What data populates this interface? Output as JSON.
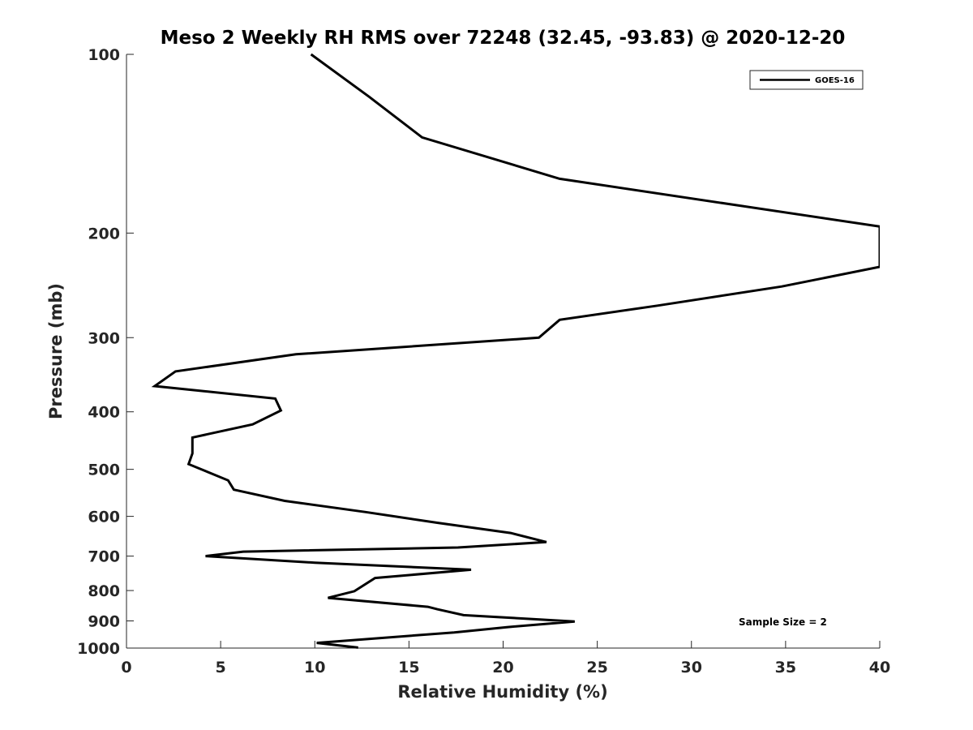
{
  "chart_data": {
    "type": "line",
    "title": "Meso 2 Weekly RH RMS over 72248 (32.45, -93.83) @ 2020-12-20",
    "xlabel": "Relative Humidity (%)",
    "ylabel": "Pressure (mb)",
    "xlim": [
      0,
      40
    ],
    "ylim": [
      100,
      1000
    ],
    "y_scale": "log",
    "y_reversed": true,
    "grid": false,
    "legend_position": "top-right",
    "x_ticks": [
      "0",
      "5",
      "10",
      "15",
      "20",
      "25",
      "30",
      "35",
      "40"
    ],
    "y_ticks": [
      "100",
      "200",
      "300",
      "400",
      "500",
      "600",
      "700",
      "800",
      "900",
      "1000"
    ],
    "series": [
      {
        "name": "GOES-16",
        "color": "#000000",
        "x": [
          9.8,
          12.9,
          15.7,
          23.0,
          40.0,
          40.0,
          34.8,
          28.2,
          23.0,
          21.9,
          9.0,
          2.6,
          1.5,
          7.9,
          8.2,
          6.7,
          3.5,
          3.5,
          3.3,
          5.4,
          5.7,
          8.4,
          12.7,
          16.5,
          20.4,
          22.3,
          17.6,
          6.2,
          4.2,
          10.0,
          18.3,
          13.2,
          12.1,
          10.7,
          16.0,
          16.5,
          17.9,
          23.8,
          20.2,
          17.4,
          10.1,
          12.3
        ],
        "y": [
          100,
          118,
          138,
          162,
          195,
          228,
          246,
          265,
          280,
          300,
          320,
          342,
          362,
          380,
          398,
          420,
          442,
          470,
          490,
          522,
          541,
          565,
          590,
          615,
          640,
          663,
          677,
          688,
          700,
          718,
          738,
          762,
          802,
          823,
          852,
          860,
          880,
          902,
          922,
          941,
          980,
          998
        ]
      }
    ],
    "annotations": [
      "Sample Size = 2"
    ]
  }
}
